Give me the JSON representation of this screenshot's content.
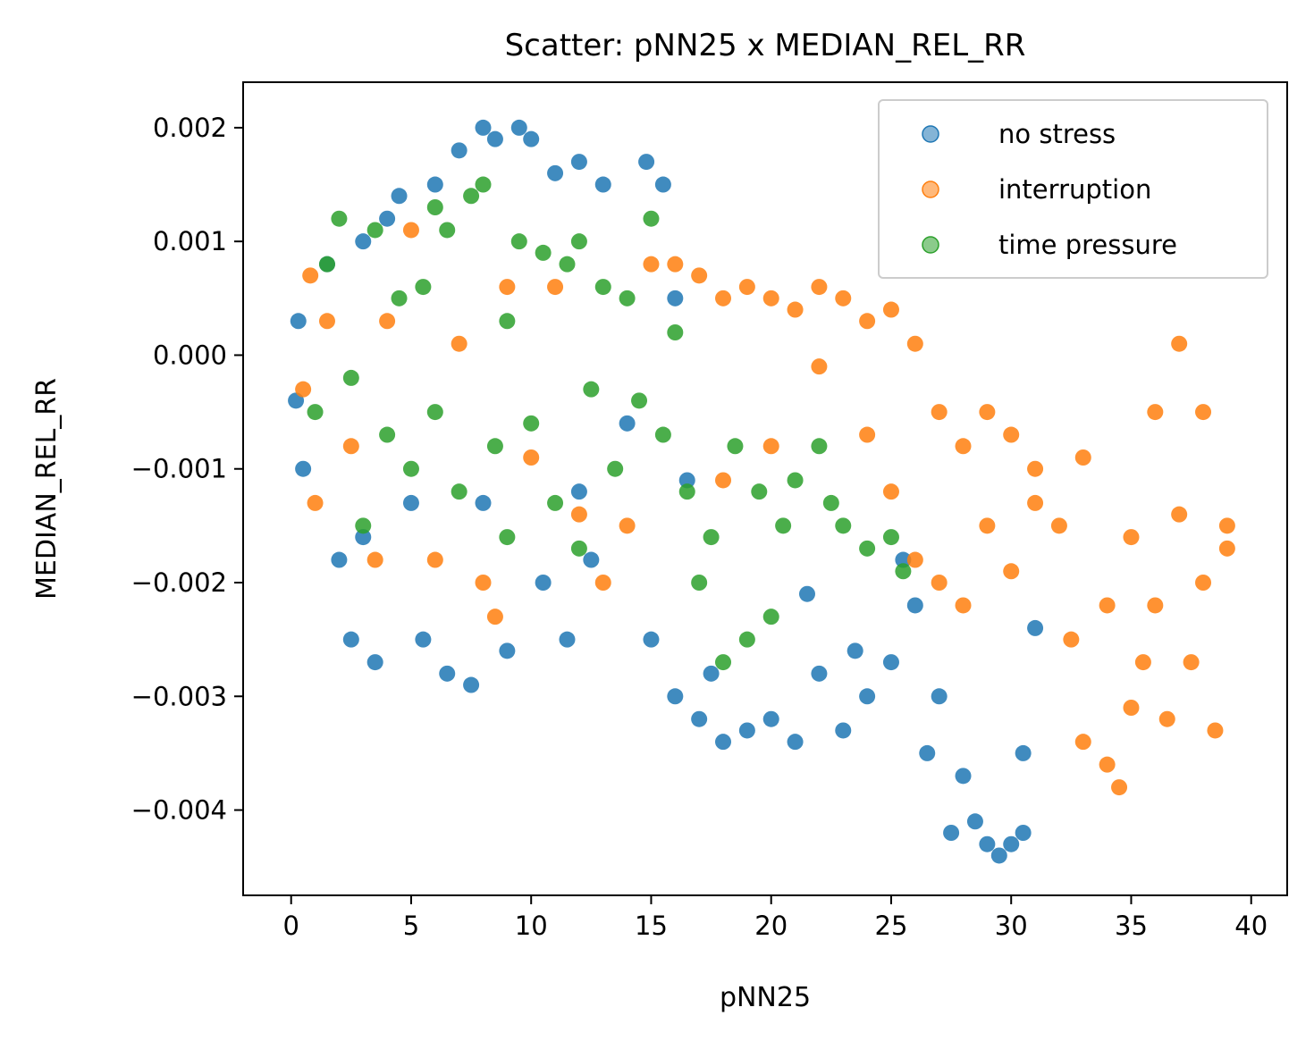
{
  "chart_data": {
    "type": "scatter",
    "title": "Scatter: pNN25 x MEDIAN_REL_RR",
    "xlabel": "pNN25",
    "ylabel": "MEDIAN_REL_RR",
    "xlim": [
      -2,
      41.5
    ],
    "ylim": [
      -0.00475,
      0.0024
    ],
    "xticks": [
      0,
      5,
      10,
      15,
      20,
      25,
      30,
      35,
      40
    ],
    "xtick_labels": [
      "0",
      "5",
      "10",
      "15",
      "20",
      "25",
      "30",
      "35",
      "40"
    ],
    "yticks": [
      0.002,
      0.001,
      0.0,
      -0.001,
      -0.002,
      -0.003,
      -0.004
    ],
    "ytick_labels": [
      "0.002",
      "0.001",
      "0.000",
      "−0.001",
      "−0.002",
      "−0.003",
      "−0.004"
    ],
    "grid": false,
    "legend_position": "top-right",
    "series": [
      {
        "name": "no stress",
        "color": "#1f77b4",
        "points": [
          [
            0.2,
            -0.0004
          ],
          [
            0.3,
            0.0003
          ],
          [
            0.5,
            -0.001
          ],
          [
            1.5,
            0.0008
          ],
          [
            2.0,
            -0.0018
          ],
          [
            2.5,
            -0.0025
          ],
          [
            3.0,
            0.001
          ],
          [
            3.5,
            -0.0027
          ],
          [
            4.0,
            0.0012
          ],
          [
            4.5,
            0.0014
          ],
          [
            5.0,
            -0.0013
          ],
          [
            5.5,
            -0.0025
          ],
          [
            6.0,
            0.0015
          ],
          [
            6.5,
            -0.0028
          ],
          [
            7.0,
            0.0018
          ],
          [
            7.5,
            -0.0029
          ],
          [
            8.0,
            0.002
          ],
          [
            8.5,
            0.0019
          ],
          [
            9.0,
            -0.0026
          ],
          [
            9.5,
            0.002
          ],
          [
            10.0,
            0.0019
          ],
          [
            10.5,
            -0.002
          ],
          [
            11.0,
            0.0016
          ],
          [
            11.5,
            -0.0025
          ],
          [
            12.0,
            0.0017
          ],
          [
            12.5,
            -0.0018
          ],
          [
            13.0,
            0.0015
          ],
          [
            14.8,
            0.0017
          ],
          [
            15.5,
            0.0015
          ],
          [
            15.0,
            -0.0025
          ],
          [
            16.0,
            -0.003
          ],
          [
            17.0,
            -0.0032
          ],
          [
            18.0,
            -0.0034
          ],
          [
            19.0,
            -0.0033
          ],
          [
            20.0,
            -0.0032
          ],
          [
            21.0,
            -0.0034
          ],
          [
            22.0,
            -0.0028
          ],
          [
            23.0,
            -0.0033
          ],
          [
            24.0,
            -0.003
          ],
          [
            25.0,
            -0.0027
          ],
          [
            26.0,
            -0.0022
          ],
          [
            27.0,
            -0.003
          ],
          [
            27.5,
            -0.0042
          ],
          [
            28.0,
            -0.0037
          ],
          [
            28.5,
            -0.0041
          ],
          [
            29.0,
            -0.0043
          ],
          [
            29.5,
            -0.0044
          ],
          [
            30.0,
            -0.0043
          ],
          [
            30.5,
            -0.0042
          ],
          [
            31.0,
            -0.0024
          ],
          [
            16.0,
            0.0005
          ],
          [
            16.5,
            -0.0011
          ],
          [
            17.5,
            -0.0028
          ],
          [
            21.5,
            -0.0021
          ],
          [
            25.5,
            -0.0018
          ],
          [
            12.0,
            -0.0012
          ],
          [
            14.0,
            -0.0006
          ],
          [
            3.0,
            -0.0016
          ],
          [
            8.0,
            -0.0013
          ],
          [
            30.5,
            -0.0035
          ],
          [
            26.5,
            -0.0035
          ],
          [
            23.5,
            -0.0026
          ]
        ]
      },
      {
        "name": "interruption",
        "color": "#ff7f0e",
        "points": [
          [
            0.5,
            -0.0003
          ],
          [
            0.8,
            0.0007
          ],
          [
            1.0,
            -0.0013
          ],
          [
            1.5,
            0.0003
          ],
          [
            2.5,
            -0.0008
          ],
          [
            3.5,
            -0.0018
          ],
          [
            4.0,
            0.0003
          ],
          [
            5.0,
            0.0011
          ],
          [
            6.0,
            -0.0018
          ],
          [
            7.0,
            0.0001
          ],
          [
            8.0,
            -0.002
          ],
          [
            8.5,
            -0.0023
          ],
          [
            9.0,
            0.0006
          ],
          [
            10.0,
            -0.0009
          ],
          [
            11.0,
            0.0006
          ],
          [
            12.0,
            -0.0014
          ],
          [
            13.0,
            -0.002
          ],
          [
            14.0,
            -0.0015
          ],
          [
            15.0,
            0.0008
          ],
          [
            16.0,
            0.0008
          ],
          [
            17.0,
            0.0007
          ],
          [
            18.0,
            0.0005
          ],
          [
            19.0,
            0.0006
          ],
          [
            20.0,
            0.0005
          ],
          [
            21.0,
            0.0004
          ],
          [
            22.0,
            0.0006
          ],
          [
            23.0,
            0.0005
          ],
          [
            24.0,
            0.0003
          ],
          [
            25.0,
            0.0004
          ],
          [
            25.0,
            -0.0012
          ],
          [
            26.0,
            0.0001
          ],
          [
            26.0,
            -0.0018
          ],
          [
            27.0,
            -0.0005
          ],
          [
            27.0,
            -0.002
          ],
          [
            28.0,
            -0.0008
          ],
          [
            28.0,
            -0.0022
          ],
          [
            29.0,
            -0.0005
          ],
          [
            29.0,
            -0.0015
          ],
          [
            30.0,
            -0.0007
          ],
          [
            30.0,
            -0.0019
          ],
          [
            31.0,
            -0.001
          ],
          [
            31.0,
            -0.0013
          ],
          [
            32.0,
            -0.0015
          ],
          [
            32.5,
            -0.0025
          ],
          [
            33.0,
            -0.0009
          ],
          [
            33.0,
            -0.0034
          ],
          [
            34.0,
            -0.0022
          ],
          [
            34.0,
            -0.0036
          ],
          [
            35.0,
            -0.0016
          ],
          [
            35.0,
            -0.0031
          ],
          [
            35.5,
            -0.0027
          ],
          [
            36.0,
            -0.0005
          ],
          [
            36.0,
            -0.0022
          ],
          [
            37.0,
            0.0001
          ],
          [
            37.0,
            -0.0014
          ],
          [
            37.5,
            -0.0027
          ],
          [
            38.0,
            -0.0005
          ],
          [
            38.0,
            -0.002
          ],
          [
            38.5,
            -0.0033
          ],
          [
            39.0,
            -0.0015
          ],
          [
            39.0,
            -0.0017
          ],
          [
            36.5,
            -0.0032
          ],
          [
            34.5,
            -0.0038
          ],
          [
            24.0,
            -0.0007
          ],
          [
            22.0,
            -0.0001
          ],
          [
            20.0,
            -0.0008
          ],
          [
            18.0,
            -0.0011
          ]
        ]
      },
      {
        "name": "time pressure",
        "color": "#2ca02c",
        "points": [
          [
            1.0,
            -0.0005
          ],
          [
            1.5,
            0.0008
          ],
          [
            2.0,
            0.0012
          ],
          [
            2.5,
            -0.0002
          ],
          [
            3.0,
            -0.0015
          ],
          [
            3.5,
            0.0011
          ],
          [
            4.0,
            -0.0007
          ],
          [
            4.5,
            0.0005
          ],
          [
            5.0,
            -0.001
          ],
          [
            5.5,
            0.0006
          ],
          [
            6.0,
            -0.0005
          ],
          [
            6.5,
            0.0011
          ],
          [
            7.0,
            -0.0012
          ],
          [
            7.5,
            0.0014
          ],
          [
            8.0,
            0.0015
          ],
          [
            8.5,
            -0.0008
          ],
          [
            9.0,
            0.0003
          ],
          [
            9.5,
            0.001
          ],
          [
            10.0,
            -0.0006
          ],
          [
            10.5,
            0.0009
          ],
          [
            11.0,
            -0.0013
          ],
          [
            11.5,
            0.0008
          ],
          [
            12.0,
            0.001
          ],
          [
            12.5,
            -0.0003
          ],
          [
            13.0,
            0.0006
          ],
          [
            13.5,
            -0.001
          ],
          [
            14.0,
            0.0005
          ],
          [
            14.5,
            -0.0004
          ],
          [
            15.0,
            0.0012
          ],
          [
            15.5,
            -0.0007
          ],
          [
            16.0,
            0.0002
          ],
          [
            16.5,
            -0.0012
          ],
          [
            17.0,
            -0.002
          ],
          [
            17.5,
            -0.0016
          ],
          [
            18.0,
            -0.0027
          ],
          [
            18.5,
            -0.0008
          ],
          [
            19.0,
            -0.0025
          ],
          [
            19.5,
            -0.0012
          ],
          [
            20.0,
            -0.0023
          ],
          [
            20.5,
            -0.0015
          ],
          [
            21.0,
            -0.0011
          ],
          [
            22.0,
            -0.0008
          ],
          [
            22.5,
            -0.0013
          ],
          [
            23.0,
            -0.0015
          ],
          [
            24.0,
            -0.0017
          ],
          [
            25.0,
            -0.0016
          ],
          [
            25.5,
            -0.0019
          ],
          [
            9.0,
            -0.0016
          ],
          [
            12.0,
            -0.0017
          ],
          [
            6.0,
            0.0013
          ]
        ]
      }
    ]
  }
}
